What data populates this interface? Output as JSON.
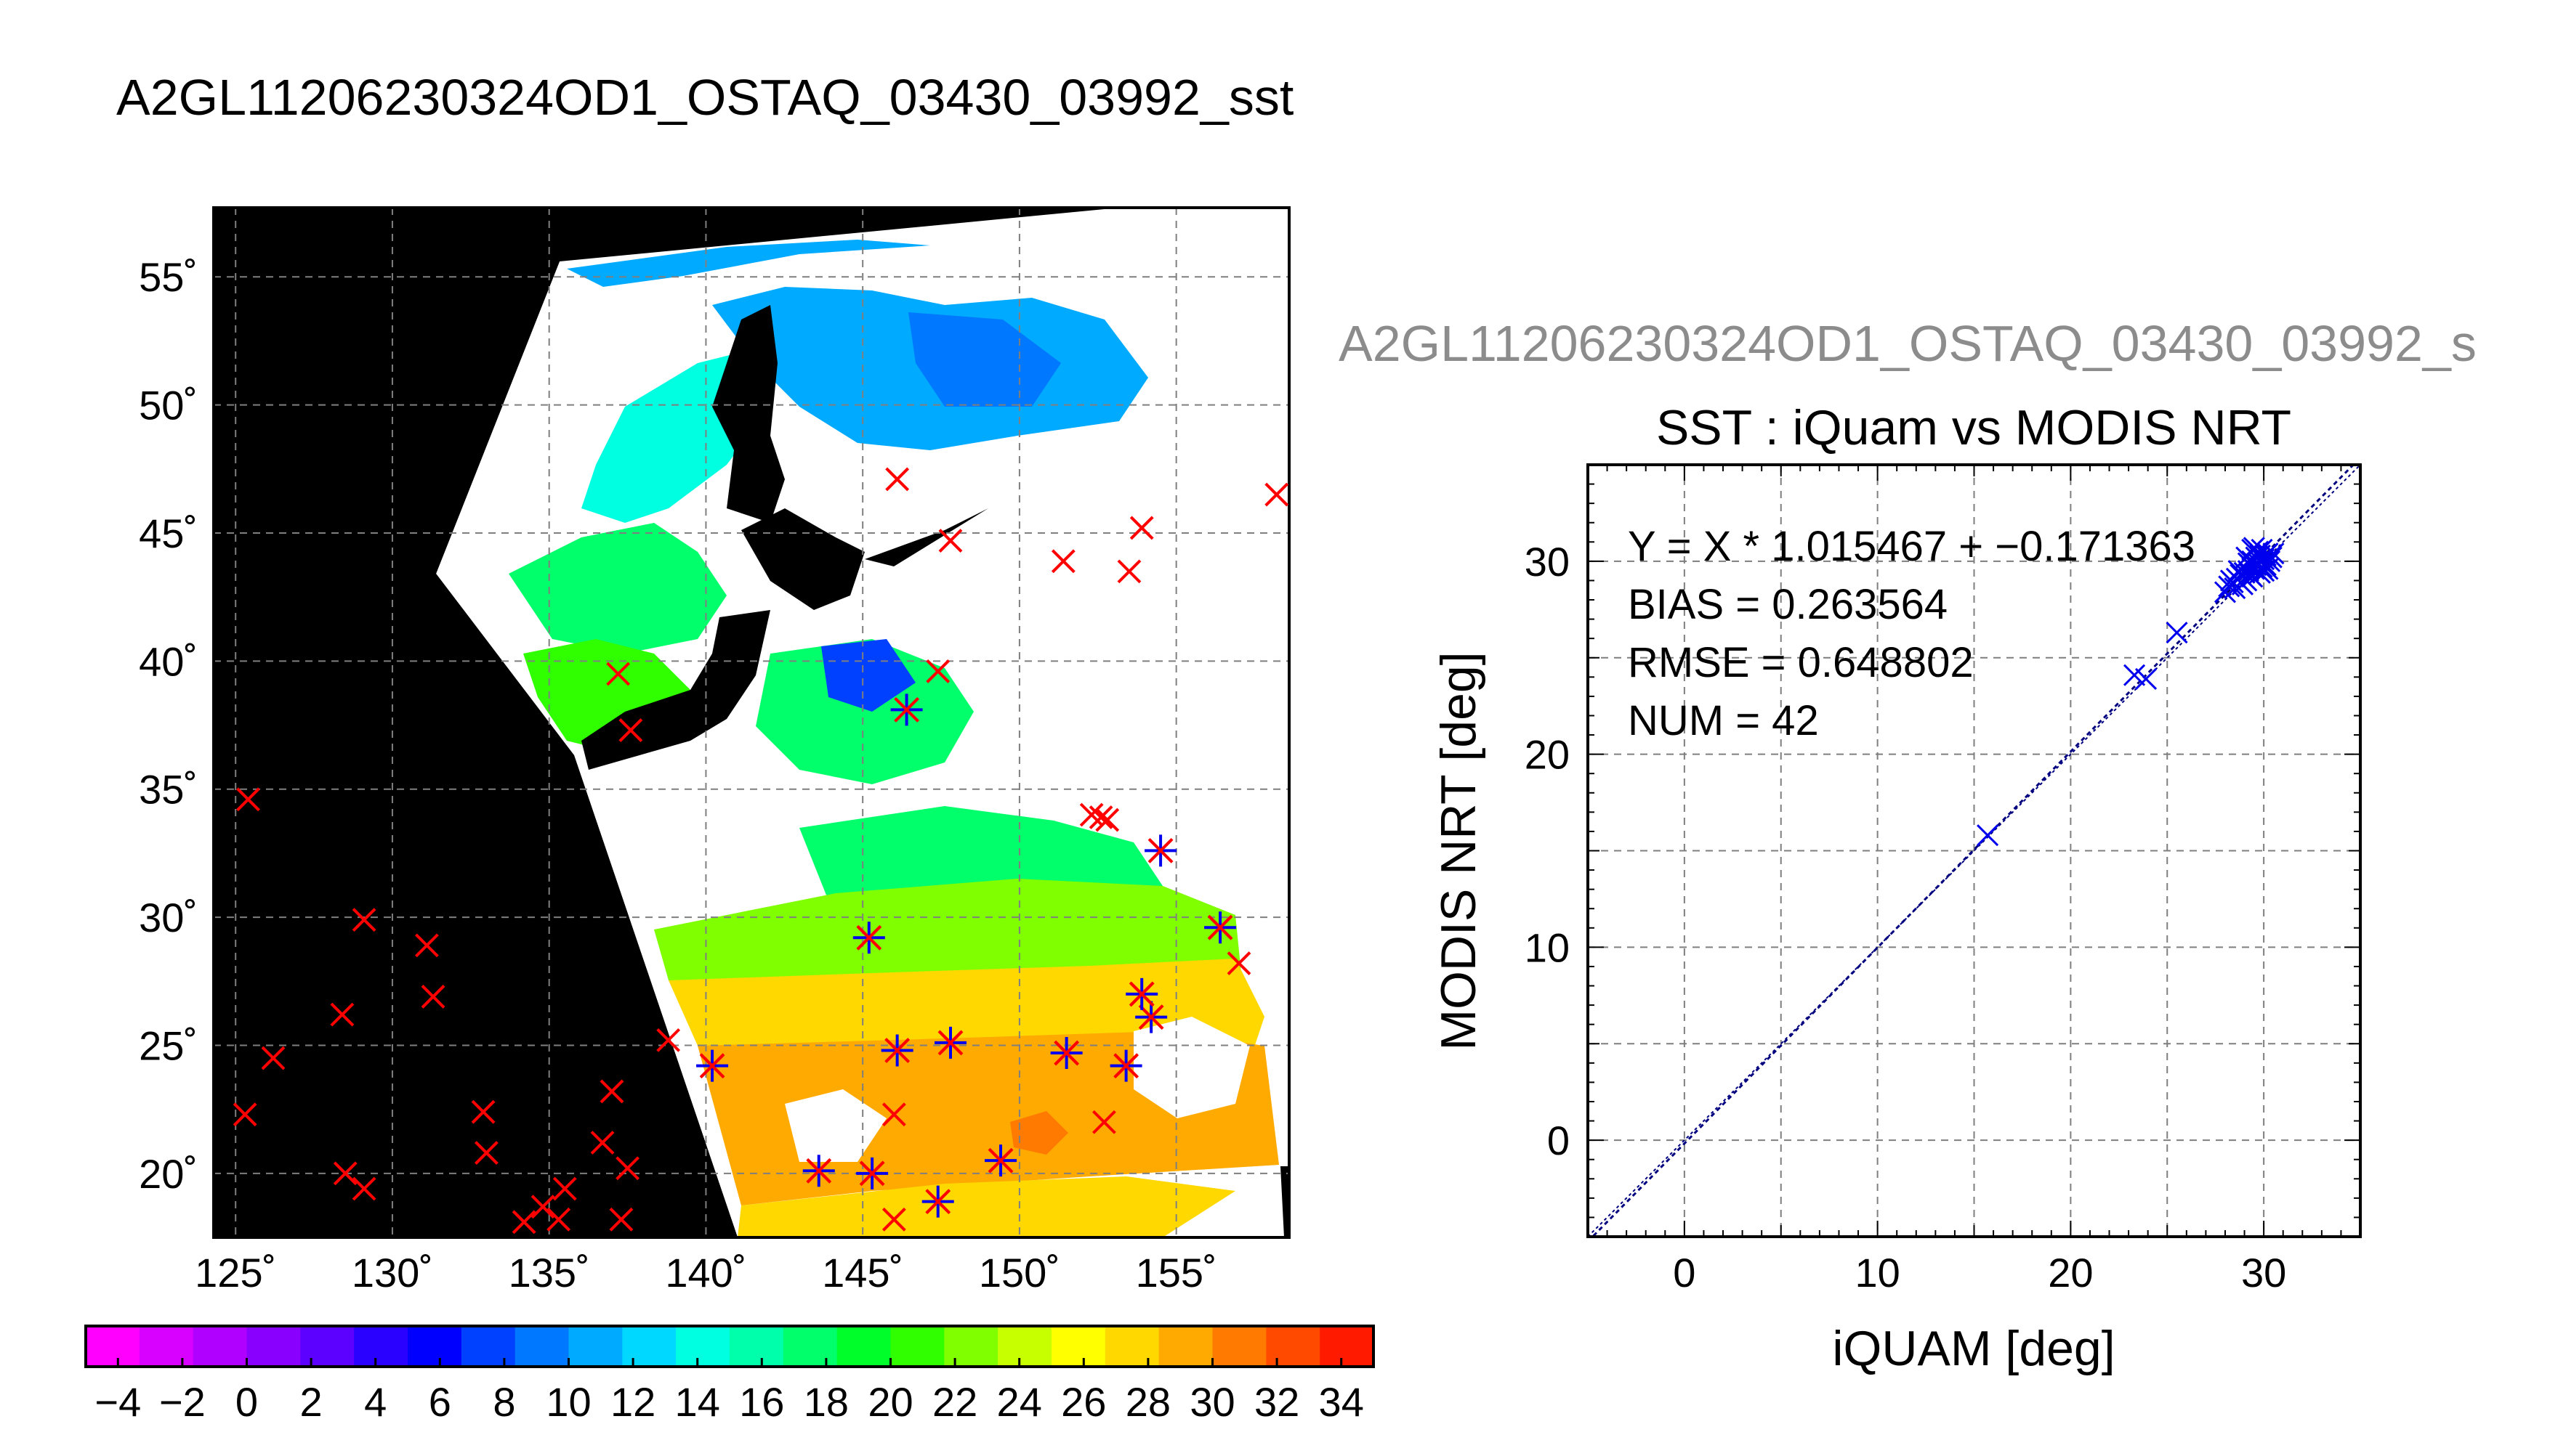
{
  "figure_title": "A2GL11206230324OD1_OSTAQ_03430_03992_sst",
  "scatter_header": "A2GL11206230324OD1_OSTAQ_03430_03992_s",
  "colors": {
    "foreground": "#000000",
    "header_gray": "#8c8c8c",
    "buoy_red": "#ff0000",
    "match_blue": "#0000ee",
    "fit_navy": "#00007f",
    "land_black": "#000000",
    "cloud_white": "#ffffff"
  },
  "chart_data": [
    {
      "type": "map",
      "title": "A2GL11206230324OD1_OSTAQ_03430_03992_sst",
      "lon_ticks": [
        "125˚",
        "130˚",
        "135˚",
        "140˚",
        "145˚",
        "150˚",
        "155˚"
      ],
      "lat_ticks": [
        "20˚",
        "25˚",
        "30˚",
        "35˚",
        "40˚",
        "45˚",
        "50˚",
        "55˚"
      ],
      "xlim": [
        124.3,
        158.6
      ],
      "ylim": [
        17.5,
        57.7
      ],
      "grid": true,
      "colorbar": {
        "vmin": -5,
        "vmax": 35,
        "step": 2,
        "tick_labels": [
          "−4",
          "−2",
          "0",
          "2",
          "4",
          "6",
          "8",
          "10",
          "12",
          "14",
          "16",
          "18",
          "20",
          "22",
          "24",
          "26",
          "28",
          "30",
          "32",
          "34"
        ],
        "colors": [
          "#ff00ff",
          "#d800ff",
          "#b000ff",
          "#8a00ff",
          "#5c00ff",
          "#2a00ff",
          "#0000ff",
          "#0040ff",
          "#0078ff",
          "#00aaff",
          "#00d8ff",
          "#00ffe0",
          "#00ffaa",
          "#00ff6a",
          "#00ff2a",
          "#30ff00",
          "#80ff00",
          "#c8ff00",
          "#ffff00",
          "#ffd800",
          "#ffaa00",
          "#ff7a00",
          "#ff4a00",
          "#ff1a00"
        ]
      },
      "buoys_all": [
        [
          125.3,
          22.3
        ],
        [
          125.4,
          34.6
        ],
        [
          126.2,
          24.5
        ],
        [
          128.4,
          26.2
        ],
        [
          128.5,
          20.0
        ],
        [
          129.1,
          19.4
        ],
        [
          129.1,
          29.9
        ],
        [
          131.1,
          28.9
        ],
        [
          131.3,
          26.9
        ],
        [
          132.9,
          22.4
        ],
        [
          133.0,
          20.8
        ],
        [
          134.2,
          18.1
        ],
        [
          134.8,
          18.7
        ],
        [
          135.3,
          18.2
        ],
        [
          135.5,
          19.4
        ],
        [
          136.7,
          21.2
        ],
        [
          137.0,
          23.2
        ],
        [
          137.5,
          20.2
        ],
        [
          137.3,
          18.2
        ],
        [
          137.2,
          39.5
        ],
        [
          137.6,
          37.3
        ],
        [
          138.8,
          25.2
        ],
        [
          140.2,
          24.2
        ],
        [
          143.6,
          20.1
        ],
        [
          145.3,
          20.0
        ],
        [
          145.2,
          29.2
        ],
        [
          146.0,
          22.3
        ],
        [
          146.1,
          24.8
        ],
        [
          146.0,
          18.2
        ],
        [
          146.4,
          38.1
        ],
        [
          146.1,
          47.1
        ],
        [
          147.4,
          39.6
        ],
        [
          147.4,
          18.9
        ],
        [
          147.8,
          44.7
        ],
        [
          147.8,
          25.1
        ],
        [
          149.4,
          20.5
        ],
        [
          151.4,
          43.9
        ],
        [
          151.5,
          24.7
        ],
        [
          152.3,
          34.0
        ],
        [
          152.6,
          33.9
        ],
        [
          152.8,
          33.8
        ],
        [
          153.4,
          24.2
        ],
        [
          152.7,
          22.0
        ],
        [
          153.5,
          43.5
        ],
        [
          153.9,
          45.2
        ],
        [
          154.2,
          26.1
        ],
        [
          153.9,
          27.0
        ],
        [
          154.5,
          32.6
        ],
        [
          156.4,
          29.6
        ],
        [
          157.0,
          28.2
        ],
        [
          158.2,
          46.5
        ]
      ],
      "buoys_matched": [
        [
          140.2,
          24.2
        ],
        [
          143.6,
          20.1
        ],
        [
          145.3,
          20.0
        ],
        [
          145.2,
          29.2
        ],
        [
          146.1,
          24.8
        ],
        [
          146.4,
          38.1
        ],
        [
          147.4,
          18.9
        ],
        [
          147.8,
          25.1
        ],
        [
          149.4,
          20.5
        ],
        [
          151.5,
          24.7
        ],
        [
          153.4,
          24.2
        ],
        [
          154.2,
          26.1
        ],
        [
          153.9,
          27.0
        ],
        [
          154.5,
          32.6
        ],
        [
          156.4,
          29.6
        ]
      ]
    },
    {
      "type": "scatter",
      "title": "SST : iQuam vs MODIS NRT",
      "xlabel": "iQUAM [deg]",
      "ylabel": "MODIS NRT [deg]",
      "xlim": [
        -5,
        35
      ],
      "ylim": [
        -5,
        35
      ],
      "x_ticks": [
        "0",
        "10",
        "20",
        "30"
      ],
      "y_ticks": [
        "0",
        "10",
        "20",
        "30"
      ],
      "grid": true,
      "stats": [
        "Y = X * 1.015467 + −0.171363",
        "BIAS = 0.263564",
        "RMSE = 0.648802",
        "NUM = 42"
      ],
      "fit": {
        "slope": 1.015467,
        "intercept": -0.171363
      },
      "points": [
        [
          15.7,
          15.8
        ],
        [
          23.3,
          24.1
        ],
        [
          23.9,
          23.9
        ],
        [
          25.5,
          26.3
        ],
        [
          28.0,
          28.4
        ],
        [
          28.2,
          28.7
        ],
        [
          28.4,
          28.9
        ],
        [
          28.6,
          29.1
        ],
        [
          28.8,
          29.3
        ],
        [
          28.9,
          28.8
        ],
        [
          29.0,
          29.4
        ],
        [
          29.1,
          29.0
        ],
        [
          29.2,
          29.5
        ],
        [
          29.3,
          29.8
        ],
        [
          29.4,
          29.2
        ],
        [
          29.4,
          30.0
        ],
        [
          29.5,
          29.6
        ],
        [
          29.6,
          30.2
        ],
        [
          29.7,
          29.9
        ],
        [
          29.8,
          30.3
        ],
        [
          29.9,
          29.7
        ],
        [
          30.0,
          30.1
        ],
        [
          30.1,
          29.8
        ],
        [
          30.2,
          30.4
        ],
        [
          30.3,
          30.0
        ],
        [
          29.7,
          30.5
        ],
        [
          29.2,
          29.9
        ],
        [
          28.7,
          29.5
        ],
        [
          29.9,
          30.6
        ],
        [
          30.1,
          30.3
        ],
        [
          29.5,
          30.7
        ],
        [
          30.0,
          29.5
        ],
        [
          30.2,
          29.6
        ],
        [
          28.5,
          28.6
        ],
        [
          29.3,
          29.3
        ],
        [
          29.8,
          29.4
        ],
        [
          29.6,
          29.8
        ],
        [
          30.4,
          30.2
        ],
        [
          29.1,
          30.2
        ],
        [
          28.3,
          29.0
        ],
        [
          30.5,
          30.4
        ],
        [
          29.4,
          30.6
        ]
      ]
    }
  ]
}
